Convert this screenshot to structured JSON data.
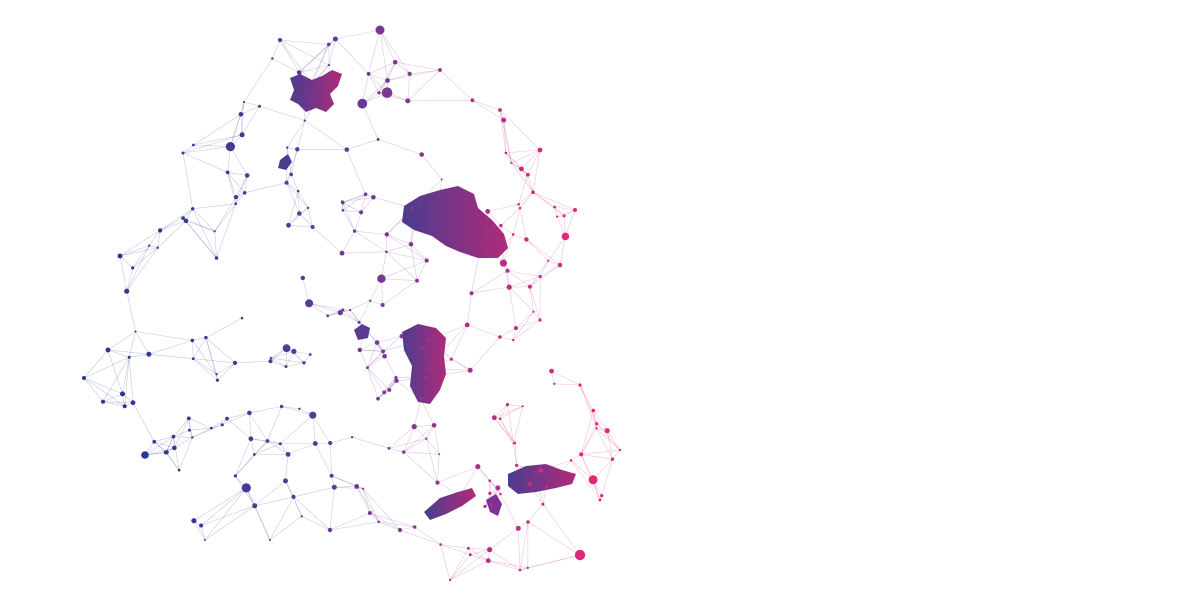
{
  "palette": {
    "background": "#ffffff",
    "blue": "#2b3a8f",
    "teal": "#1a8fb5",
    "purple": "#6b3a96",
    "magenta": "#e0287a",
    "island_left": "#4a3d8f",
    "island_right": "#b02a7a"
  },
  "illustration": {
    "subject": "network-graph-over-island-map",
    "icon": "constellation-network-icon"
  }
}
